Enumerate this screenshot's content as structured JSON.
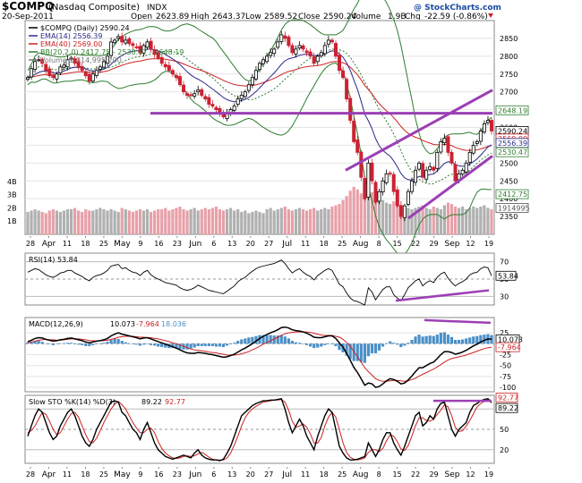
{
  "header": {
    "symbol": "$COMPQ",
    "name": "(Nasdaq Composite)",
    "exchange": "INDX",
    "watermark": "@ StockCharts.com",
    "date": "20-Sep-2011",
    "open_label": "Open",
    "open": "2623.89",
    "high_label": "High",
    "high": "2643.37",
    "low_label": "Low",
    "low": "2589.52",
    "close_label": "Close",
    "close": "2590.24",
    "volume_label": "Volume",
    "volume": "1.9B",
    "chg_label": "Chg",
    "chg": "-22.59 (-0.86%)"
  },
  "colors": {
    "up": "#000000",
    "down": "#cc2233",
    "ema14": "#2a2a8a",
    "ema40": "#cc2222",
    "bb": "#2e7d2e",
    "volume_up": "#b0b0b0",
    "volume_down": "#e8a0a8",
    "trendline": "#9b3fb5",
    "macd_hist": "#4a90c8",
    "label_box": "#ffffff"
  },
  "chart_data": [
    {
      "type": "candlestick",
      "title": "$COMPQ (Daily) 2590.24",
      "legend": [
        {
          "name": "$COMPQ (Daily) 2590.24",
          "color": "#000000"
        },
        {
          "name": "EMA(14) 2556.39",
          "color": "#2a2a8a"
        },
        {
          "name": "EMA(40) 2569.00",
          "color": "#cc2222"
        },
        {
          "name": "BB(20,2.0) 2412.75 - 2530.47 - 2648.19",
          "color": "#2e7d2e"
        },
        {
          "name": "Volume 1,914,995,200",
          "color": "#777777"
        }
      ],
      "ylim": [
        2300,
        2900
      ],
      "y_ticks": [
        2350,
        2400,
        2450,
        2500,
        2550,
        2600,
        2650,
        2700,
        2750,
        2800,
        2850
      ],
      "volume_ticks": [
        "1B",
        "2B",
        "3B",
        "4B"
      ],
      "x_labels": [
        "28",
        "Apr",
        "11",
        "18",
        "25",
        "May",
        "9",
        "16",
        "23",
        "Jun",
        "6",
        "13",
        "20",
        "27",
        "Jul",
        "11",
        "18",
        "25",
        "Aug",
        "8",
        "15",
        "22",
        "29",
        "Sep",
        "12",
        "19"
      ],
      "price_labels": [
        "2648.19",
        "2590.24",
        "2569.00",
        "2556.39",
        "2530.47",
        "2412.75",
        "1914995"
      ],
      "closes": [
        2740,
        2765,
        2785,
        2790,
        2780,
        2760,
        2745,
        2740,
        2750,
        2770,
        2775,
        2790,
        2795,
        2780,
        2770,
        2760,
        2745,
        2730,
        2750,
        2760,
        2770,
        2785,
        2800,
        2840,
        2845,
        2855,
        2840,
        2845,
        2835,
        2830,
        2825,
        2810,
        2830,
        2840,
        2820,
        2805,
        2795,
        2780,
        2770,
        2760,
        2750,
        2740,
        2720,
        2700,
        2690,
        2690,
        2695,
        2705,
        2690,
        2680,
        2665,
        2660,
        2650,
        2640,
        2630,
        2640,
        2650,
        2660,
        2680,
        2690,
        2700,
        2720,
        2740,
        2760,
        2780,
        2790,
        2800,
        2810,
        2820,
        2840,
        2860,
        2850,
        2830,
        2810,
        2820,
        2830,
        2820,
        2810,
        2800,
        2780,
        2800,
        2810,
        2830,
        2845,
        2840,
        2800,
        2760,
        2740,
        2680,
        2620,
        2560,
        2530,
        2460,
        2400,
        2500,
        2450,
        2390,
        2420,
        2450,
        2470,
        2470,
        2420,
        2380,
        2350,
        2380,
        2420,
        2450,
        2480,
        2500,
        2460,
        2480,
        2490,
        2480,
        2530,
        2560,
        2570,
        2530,
        2500,
        2450,
        2470,
        2480,
        2500,
        2530,
        2550,
        2560,
        2590,
        2610,
        2620,
        2590
      ],
      "volume_values": [
        1.7,
        1.8,
        1.9,
        1.8,
        1.7,
        1.6,
        1.8,
        1.9,
        1.8,
        1.7,
        1.8,
        1.9,
        1.9,
        2.0,
        1.8,
        1.7,
        1.9,
        1.8,
        1.8,
        1.9,
        2.0,
        1.9,
        1.8,
        1.9,
        1.8,
        1.7,
        2.0,
        1.9,
        1.8,
        1.7,
        1.8,
        1.9,
        1.8,
        1.9,
        1.7,
        1.8,
        1.9,
        1.9,
        2.0,
        1.8,
        1.9,
        2.0,
        2.1,
        1.9,
        1.8,
        1.9,
        2.0,
        1.8,
        1.9,
        2.0,
        1.9,
        2.0,
        2.1,
        1.9,
        1.8,
        1.9,
        2.0,
        1.8,
        1.9,
        1.7,
        1.8,
        1.6,
        1.7,
        1.8,
        1.7,
        1.6,
        1.9,
        2.0,
        1.8,
        1.9,
        2.0,
        2.1,
        1.9,
        1.8,
        1.9,
        2.0,
        1.9,
        1.8,
        1.9,
        2.0,
        1.8,
        1.9,
        2.0,
        1.9,
        2.1,
        2.2,
        2.3,
        2.6,
        2.9,
        3.3,
        3.6,
        3.4,
        3.1,
        3.5,
        2.9,
        3.2,
        2.8,
        2.7,
        2.6,
        2.4,
        2.3,
        2.5,
        2.4,
        2.2,
        2.1,
        2.0,
        1.9,
        2.0,
        2.1,
        2.2,
        2.0,
        1.9,
        2.1,
        2.0,
        1.9,
        2.2,
        2.4,
        2.3,
        2.1,
        2.0,
        2.1,
        1.9,
        2.0,
        2.1,
        2.0,
        2.1,
        2.2,
        2.0,
        1.9
      ]
    },
    {
      "type": "line",
      "title": "RSI(14) 53.84",
      "ylim": [
        20,
        80
      ],
      "y_ticks": [
        30,
        50,
        70
      ],
      "values": [
        58,
        60,
        62,
        61,
        58,
        55,
        53,
        52,
        54,
        57,
        58,
        60,
        60,
        57,
        55,
        53,
        50,
        48,
        52,
        54,
        55,
        57,
        60,
        65,
        66,
        67,
        62,
        63,
        60,
        58,
        57,
        54,
        58,
        60,
        55,
        52,
        50,
        48,
        46,
        45,
        44,
        43,
        40,
        38,
        37,
        38,
        40,
        43,
        41,
        39,
        37,
        36,
        35,
        34,
        33,
        36,
        39,
        42,
        47,
        50,
        52,
        56,
        59,
        62,
        64,
        65,
        66,
        67,
        68,
        70,
        72,
        68,
        62,
        57,
        60,
        62,
        58,
        55,
        53,
        49,
        54,
        57,
        60,
        62,
        60,
        52,
        44,
        41,
        34,
        28,
        25,
        24,
        22,
        20,
        40,
        35,
        26,
        32,
        38,
        41,
        41,
        32,
        28,
        25,
        32,
        40,
        44,
        48,
        50,
        42,
        46,
        48,
        46,
        52,
        56,
        58,
        51,
        46,
        42,
        45,
        47,
        50,
        55,
        57,
        58,
        62,
        64,
        63,
        53.84
      ],
      "price_label": "53.84"
    },
    {
      "type": "line",
      "title": "MACD(12,26,9)",
      "series_labels": [
        "MACD(12,26,9)",
        "10.073",
        "-7.964",
        "18.036"
      ],
      "ylim": [
        -110,
        60
      ],
      "y_ticks": [
        -100,
        -75,
        -50,
        -25,
        0,
        25
      ],
      "macd_values": [
        5,
        8,
        12,
        14,
        13,
        10,
        8,
        6,
        7,
        9,
        10,
        12,
        13,
        11,
        9,
        7,
        4,
        2,
        4,
        6,
        7,
        9,
        12,
        18,
        22,
        25,
        22,
        20,
        18,
        16,
        14,
        11,
        13,
        14,
        11,
        8,
        5,
        2,
        -1,
        -4,
        -7,
        -10,
        -14,
        -18,
        -21,
        -22,
        -22,
        -20,
        -21,
        -22,
        -24,
        -25,
        -27,
        -29,
        -31,
        -30,
        -27,
        -24,
        -19,
        -14,
        -10,
        -5,
        0,
        6,
        12,
        17,
        21,
        25,
        28,
        32,
        37,
        38,
        36,
        32,
        30,
        29,
        27,
        24,
        20,
        15,
        14,
        14,
        16,
        18,
        18,
        12,
        2,
        -8,
        -22,
        -38,
        -54,
        -66,
        -80,
        -95,
        -90,
        -92,
        -100,
        -98,
        -92,
        -85,
        -80,
        -82,
        -86,
        -92,
        -90,
        -83,
        -74,
        -64,
        -55,
        -55,
        -50,
        -45,
        -42,
        -34,
        -25,
        -18,
        -18,
        -20,
        -24,
        -22,
        -19,
        -15,
        -10,
        -5,
        -1,
        4,
        8,
        11,
        10.073
      ],
      "signal_values": [
        2,
        4,
        6,
        8,
        9,
        10,
        9,
        9,
        8,
        8,
        9,
        10,
        11,
        11,
        11,
        10,
        9,
        7,
        7,
        6,
        7,
        7,
        8,
        10,
        12,
        15,
        16,
        17,
        17,
        17,
        16,
        15,
        15,
        14,
        14,
        12,
        11,
        9,
        7,
        5,
        2,
        0,
        -3,
        -6,
        -9,
        -12,
        -14,
        -15,
        -16,
        -17,
        -19,
        -20,
        -21,
        -23,
        -24,
        -26,
        -26,
        -26,
        -25,
        -23,
        -21,
        -18,
        -14,
        -10,
        -6,
        -1,
        3,
        7,
        11,
        15,
        19,
        23,
        25,
        26,
        27,
        27,
        27,
        27,
        26,
        24,
        22,
        20,
        19,
        19,
        19,
        17,
        15,
        10,
        3,
        -6,
        -18,
        -30,
        -42,
        -55,
        -64,
        -72,
        -80,
        -84,
        -86,
        -86,
        -85,
        -84,
        -84,
        -85,
        -86,
        -85,
        -82,
        -79,
        -74,
        -70,
        -66,
        -62,
        -58,
        -53,
        -48,
        -42,
        -37,
        -34,
        -32,
        -30,
        -28,
        -26,
        -23,
        -20,
        -17,
        -14,
        -11,
        -9,
        -7.964
      ],
      "ticks_right": [
        "10.073",
        "-7.964"
      ]
    },
    {
      "type": "line",
      "title": "Slow STO %K(14) %D(3) 89.22, 92.77",
      "series_labels": [
        "Slow STO %K(14) %D(3)",
        "89.22",
        "92.77"
      ],
      "ylim": [
        0,
        100
      ],
      "y_ticks": [
        20,
        50,
        80
      ],
      "k_values": [
        40,
        55,
        70,
        80,
        75,
        60,
        45,
        35,
        40,
        55,
        65,
        75,
        80,
        70,
        55,
        40,
        30,
        25,
        35,
        50,
        60,
        70,
        80,
        90,
        92,
        90,
        75,
        70,
        60,
        50,
        45,
        35,
        50,
        60,
        45,
        30,
        20,
        15,
        10,
        8,
        6,
        8,
        10,
        12,
        10,
        8,
        15,
        20,
        12,
        8,
        6,
        5,
        5,
        4,
        6,
        15,
        25,
        40,
        55,
        70,
        75,
        80,
        85,
        88,
        90,
        92,
        92,
        93,
        93,
        94,
        95,
        80,
        60,
        45,
        55,
        65,
        55,
        40,
        30,
        20,
        40,
        55,
        70,
        80,
        75,
        50,
        25,
        15,
        8,
        5,
        5,
        6,
        8,
        10,
        30,
        20,
        10,
        20,
        35,
        45,
        45,
        30,
        20,
        12,
        25,
        40,
        55,
        70,
        75,
        55,
        60,
        70,
        65,
        80,
        88,
        90,
        70,
        50,
        40,
        50,
        55,
        60,
        75,
        85,
        88,
        92,
        94,
        95,
        89.22
      ],
      "d_values": [
        45,
        48,
        55,
        65,
        75,
        72,
        62,
        50,
        42,
        45,
        55,
        65,
        73,
        75,
        68,
        55,
        42,
        32,
        30,
        37,
        48,
        60,
        70,
        80,
        87,
        91,
        86,
        80,
        70,
        60,
        52,
        45,
        45,
        50,
        52,
        45,
        32,
        22,
        15,
        11,
        8,
        7,
        8,
        10,
        11,
        10,
        11,
        14,
        16,
        13,
        9,
        6,
        5,
        5,
        5,
        8,
        15,
        27,
        40,
        55,
        67,
        75,
        80,
        84,
        87,
        90,
        91,
        92,
        93,
        93,
        94,
        90,
        78,
        62,
        53,
        55,
        58,
        53,
        43,
        30,
        30,
        38,
        55,
        68,
        75,
        68,
        50,
        30,
        16,
        9,
        6,
        5,
        6,
        8,
        16,
        20,
        20,
        17,
        22,
        33,
        42,
        40,
        32,
        21,
        19,
        26,
        40,
        55,
        67,
        67,
        63,
        62,
        65,
        72,
        78,
        86,
        83,
        70,
        53,
        47,
        48,
        55,
        63,
        73,
        83,
        88,
        91,
        94,
        92.77
      ],
      "price_labels": [
        "92.77",
        "89.22"
      ]
    }
  ]
}
